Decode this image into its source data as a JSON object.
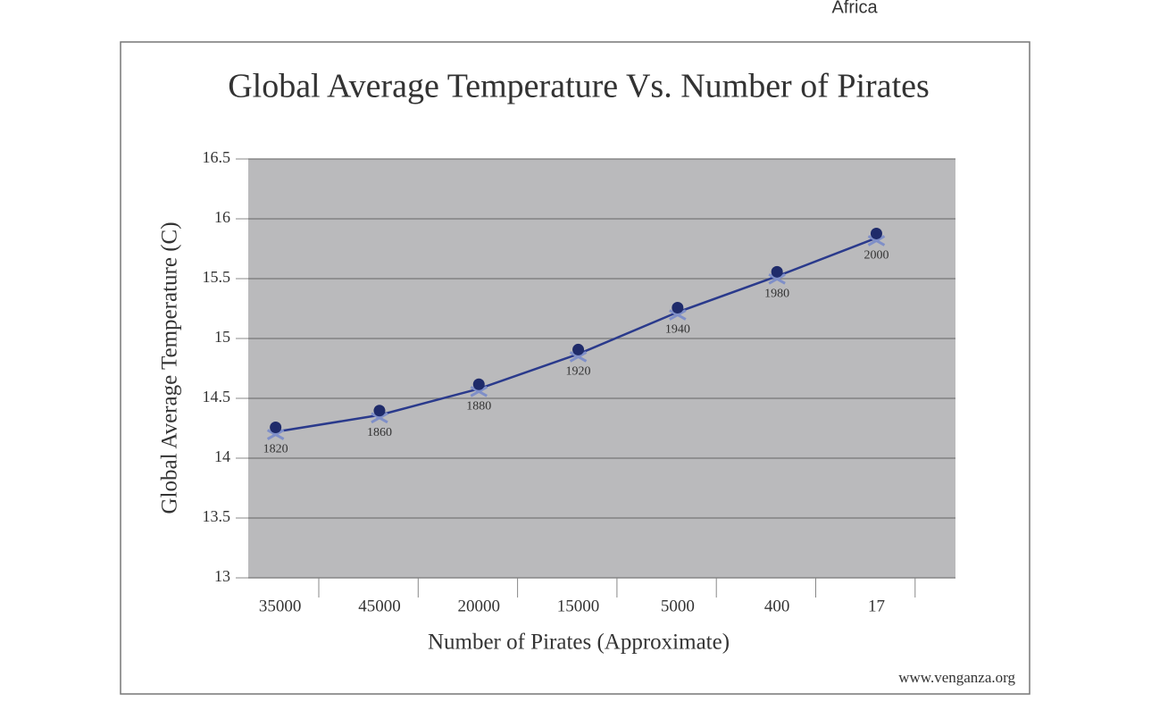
{
  "header_fragment": "Africa",
  "chart_data": {
    "type": "line",
    "title": "Global Average Temperature Vs. Number of Pirates",
    "x_label": "Number of Pirates (Approximate)",
    "y_label": "Global Average Temperature (C)",
    "categories": [
      "35000",
      "45000",
      "20000",
      "15000",
      "5000",
      "400",
      "17"
    ],
    "values": [
      14.22,
      14.36,
      14.58,
      14.87,
      15.22,
      15.52,
      15.84
    ],
    "point_labels": [
      "1820",
      "1860",
      "1880",
      "1920",
      "1940",
      "1980",
      "2000"
    ],
    "color": "#2a3a8c",
    "ylim": [
      13,
      16.5
    ],
    "yticks": [
      13,
      13.5,
      14,
      14.5,
      15,
      15.5,
      16,
      16.5
    ],
    "grid": true,
    "source": "www.venganza.org"
  }
}
